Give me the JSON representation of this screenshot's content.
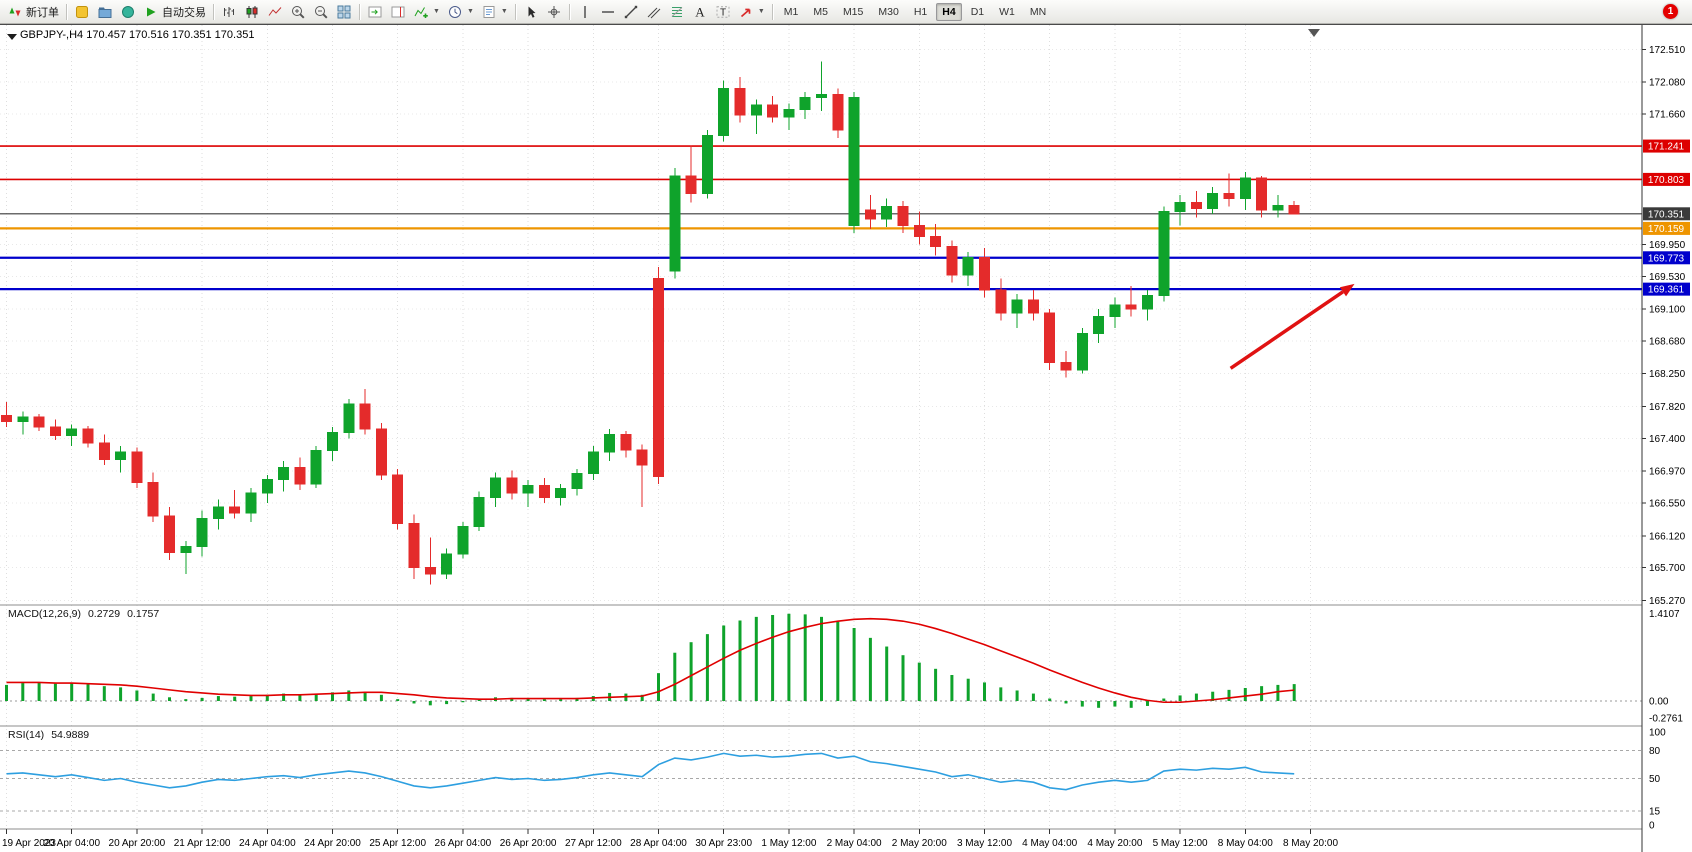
{
  "header": {
    "title": "GBPJPY-,H4 170.457 170.516 170.351 170.351"
  },
  "toolbar": {
    "items": [
      {
        "name": "new-order",
        "label": "新订单"
      },
      {
        "name": "sep"
      },
      {
        "name": "metaeditor"
      },
      {
        "name": "profiles"
      },
      {
        "name": "data-window"
      },
      {
        "name": "auto-trading",
        "label": "自动交易"
      },
      {
        "name": "sep"
      },
      {
        "name": "bars-chart"
      },
      {
        "name": "candles-chart"
      },
      {
        "name": "line-chart"
      },
      {
        "name": "zoom-in"
      },
      {
        "name": "zoom-out"
      },
      {
        "name": "tile-windows"
      },
      {
        "name": "sep"
      },
      {
        "name": "auto-scroll"
      },
      {
        "name": "chart-shift"
      },
      {
        "name": "indicators",
        "caret": true
      },
      {
        "name": "periods",
        "caret": true
      },
      {
        "name": "templates",
        "caret": true
      },
      {
        "name": "sep"
      },
      {
        "name": "cursor"
      },
      {
        "name": "crosshair"
      },
      {
        "name": "sep"
      },
      {
        "name": "vertical-line"
      },
      {
        "name": "horizontal-line"
      },
      {
        "name": "trendline"
      },
      {
        "name": "equidistant-channel"
      },
      {
        "name": "fibonacci"
      },
      {
        "name": "text"
      },
      {
        "name": "text-label"
      },
      {
        "name": "arrows",
        "caret": true
      },
      {
        "name": "sep"
      }
    ],
    "timeframes": [
      "M1",
      "M5",
      "M15",
      "M30",
      "H1",
      "H4",
      "D1",
      "W1",
      "MN"
    ],
    "active_timeframe": "H4",
    "notification": "1"
  },
  "chart_data": {
    "type": "candlestick",
    "symbol": "GBPJPY-",
    "period": "H4",
    "ohlc_current": {
      "open": "170.457",
      "high": "170.516",
      "low": "170.351",
      "close": "170.351"
    },
    "colors": {
      "bull": "#0fa32b",
      "bear": "#e42b2b"
    },
    "y_ticks": [
      "172.510",
      "172.080",
      "171.660",
      "169.950",
      "169.530",
      "169.100",
      "168.680",
      "168.250",
      "167.820",
      "167.400",
      "166.970",
      "166.550",
      "166.120",
      "165.700",
      "165.270"
    ],
    "x_labels": [
      "19 Apr 2023",
      "20 Apr 04:00",
      "20 Apr 20:00",
      "21 Apr 12:00",
      "24 Apr 04:00",
      "24 Apr 20:00",
      "25 Apr 12:00",
      "26 Apr 04:00",
      "26 Apr 20:00",
      "27 Apr 12:00",
      "28 Apr 04:00",
      "30 Apr 23:00",
      "1 May 12:00",
      "2 May 04:00",
      "2 May 20:00",
      "3 May 12:00",
      "4 May 04:00",
      "4 May 20:00",
      "5 May 12:00",
      "8 May 04:00",
      "8 May 20:00"
    ],
    "hlines": [
      {
        "price": 171.241,
        "label": "171.241",
        "color": "#dd0000",
        "width": 1.6,
        "name": "resistance-line-upper"
      },
      {
        "price": 170.803,
        "label": "170.803",
        "color": "#dd0000",
        "width": 1.6,
        "name": "resistance-line-lower"
      },
      {
        "price": 170.351,
        "label": "170.351",
        "color": "#3a3a3a",
        "width": 1.1,
        "name": "current-price-line"
      },
      {
        "price": 170.159,
        "label": "170.159",
        "color": "#ee9500",
        "width": 2.2,
        "name": "pivot-line-orange"
      },
      {
        "price": 169.773,
        "label": "169.773",
        "color": "#0000cc",
        "width": 2.2,
        "name": "support-line-upper"
      },
      {
        "price": 169.361,
        "label": "169.361",
        "color": "#0000cc",
        "width": 2.2,
        "name": "support-line-lower"
      }
    ],
    "arrow": {
      "from_bar": 75.1,
      "from_price": 168.32,
      "to_bar": 82.7,
      "to_price": 169.43,
      "color": "#e01212"
    },
    "candles": [
      [
        167.7,
        167.88,
        167.55,
        167.62
      ],
      [
        167.62,
        167.75,
        167.45,
        167.68
      ],
      [
        167.68,
        167.72,
        167.5,
        167.55
      ],
      [
        167.55,
        167.65,
        167.38,
        167.44
      ],
      [
        167.44,
        167.58,
        167.3,
        167.52
      ],
      [
        167.52,
        167.56,
        167.28,
        167.34
      ],
      [
        167.34,
        167.45,
        167.05,
        167.12
      ],
      [
        167.12,
        167.3,
        166.95,
        167.22
      ],
      [
        167.22,
        167.28,
        166.75,
        166.82
      ],
      [
        166.82,
        166.95,
        166.3,
        166.38
      ],
      [
        166.38,
        166.5,
        165.8,
        165.9
      ],
      [
        165.9,
        166.05,
        165.62,
        165.98
      ],
      [
        165.98,
        166.45,
        165.85,
        166.35
      ],
      [
        166.35,
        166.6,
        166.2,
        166.5
      ],
      [
        166.5,
        166.72,
        166.35,
        166.42
      ],
      [
        166.42,
        166.75,
        166.3,
        166.68
      ],
      [
        166.68,
        166.92,
        166.55,
        166.86
      ],
      [
        166.86,
        167.1,
        166.7,
        167.02
      ],
      [
        167.02,
        167.15,
        166.72,
        166.8
      ],
      [
        166.8,
        167.3,
        166.75,
        167.24
      ],
      [
        167.24,
        167.55,
        167.1,
        167.48
      ],
      [
        167.48,
        167.92,
        167.4,
        167.85
      ],
      [
        167.85,
        168.05,
        167.45,
        167.52
      ],
      [
        167.52,
        167.6,
        166.85,
        166.92
      ],
      [
        166.92,
        167.0,
        166.2,
        166.28
      ],
      [
        166.28,
        166.4,
        165.55,
        165.7
      ],
      [
        165.7,
        166.1,
        165.48,
        165.62
      ],
      [
        165.62,
        165.95,
        165.55,
        165.88
      ],
      [
        165.88,
        166.3,
        165.82,
        166.24
      ],
      [
        166.24,
        166.7,
        166.18,
        166.62
      ],
      [
        166.62,
        166.95,
        166.5,
        166.88
      ],
      [
        166.88,
        166.98,
        166.6,
        166.68
      ],
      [
        166.68,
        166.85,
        166.5,
        166.78
      ],
      [
        166.78,
        166.88,
        166.55,
        166.62
      ],
      [
        166.62,
        166.8,
        166.52,
        166.74
      ],
      [
        166.74,
        167.0,
        166.65,
        166.94
      ],
      [
        166.94,
        167.3,
        166.85,
        167.22
      ],
      [
        167.22,
        167.52,
        167.1,
        167.45
      ],
      [
        167.45,
        167.5,
        167.15,
        167.25
      ],
      [
        167.25,
        167.32,
        166.5,
        167.05
      ],
      [
        169.5,
        169.65,
        166.8,
        166.9
      ],
      [
        169.6,
        170.95,
        169.5,
        170.85
      ],
      [
        170.85,
        171.25,
        170.5,
        170.62
      ],
      [
        170.62,
        171.45,
        170.55,
        171.38
      ],
      [
        171.38,
        172.1,
        171.3,
        172.0
      ],
      [
        172.0,
        172.15,
        171.55,
        171.65
      ],
      [
        171.65,
        171.85,
        171.4,
        171.78
      ],
      [
        171.78,
        171.9,
        171.55,
        171.62
      ],
      [
        171.62,
        171.8,
        171.45,
        171.72
      ],
      [
        171.72,
        171.95,
        171.6,
        171.88
      ],
      [
        171.88,
        172.35,
        171.7,
        171.92
      ],
      [
        171.92,
        172.0,
        171.35,
        171.45
      ],
      [
        170.2,
        171.95,
        170.1,
        171.88
      ],
      [
        170.4,
        170.6,
        170.15,
        170.28
      ],
      [
        170.28,
        170.55,
        170.18,
        170.45
      ],
      [
        170.45,
        170.52,
        170.1,
        170.2
      ],
      [
        170.2,
        170.38,
        169.95,
        170.05
      ],
      [
        170.05,
        170.22,
        169.8,
        169.92
      ],
      [
        169.92,
        170.0,
        169.45,
        169.55
      ],
      [
        169.55,
        169.85,
        169.4,
        169.78
      ],
      [
        169.78,
        169.9,
        169.25,
        169.35
      ],
      [
        169.35,
        169.5,
        168.95,
        169.05
      ],
      [
        169.05,
        169.3,
        168.85,
        169.22
      ],
      [
        169.22,
        169.35,
        168.95,
        169.05
      ],
      [
        169.05,
        169.1,
        168.3,
        168.4
      ],
      [
        168.4,
        168.55,
        168.2,
        168.3
      ],
      [
        168.3,
        168.85,
        168.25,
        168.78
      ],
      [
        168.78,
        169.1,
        168.65,
        169.0
      ],
      [
        169.0,
        169.25,
        168.85,
        169.15
      ],
      [
        169.15,
        169.4,
        169.0,
        169.1
      ],
      [
        169.1,
        169.35,
        168.95,
        169.28
      ],
      [
        169.28,
        170.45,
        169.2,
        170.38
      ],
      [
        170.38,
        170.6,
        170.2,
        170.5
      ],
      [
        170.5,
        170.65,
        170.3,
        170.42
      ],
      [
        170.42,
        170.7,
        170.35,
        170.62
      ],
      [
        170.62,
        170.88,
        170.45,
        170.55
      ],
      [
        170.55,
        170.9,
        170.4,
        170.82
      ],
      [
        170.82,
        170.85,
        170.3,
        170.4
      ],
      [
        170.4,
        170.6,
        170.3,
        170.46
      ],
      [
        170.457,
        170.516,
        170.351,
        170.351
      ]
    ],
    "indicators": {
      "macd": {
        "name": "MACD(12,26,9)",
        "value_main": "0.2729",
        "value_signal": "0.1757",
        "scale_labels": [
          "1.4107",
          "0.00",
          "-0.2761"
        ],
        "scale_values": [
          1.4107,
          0,
          -0.2761
        ],
        "histogram_color": "#0fa32b",
        "signal_color": "#e00000",
        "histogram": [
          0.26,
          0.29,
          0.3,
          0.28,
          0.29,
          0.27,
          0.24,
          0.22,
          0.17,
          0.12,
          0.06,
          0.03,
          0.05,
          0.08,
          0.07,
          0.08,
          0.1,
          0.12,
          0.09,
          0.11,
          0.14,
          0.17,
          0.15,
          0.1,
          0.03,
          -0.04,
          -0.07,
          -0.05,
          -0.02,
          0.02,
          0.06,
          0.05,
          0.04,
          0.03,
          0.03,
          0.05,
          0.08,
          0.13,
          0.12,
          0.1,
          0.45,
          0.78,
          0.95,
          1.08,
          1.22,
          1.3,
          1.36,
          1.39,
          1.41,
          1.4,
          1.36,
          1.28,
          1.18,
          1.02,
          0.88,
          0.74,
          0.62,
          0.52,
          0.42,
          0.36,
          0.3,
          0.22,
          0.17,
          0.12,
          0.04,
          -0.04,
          -0.09,
          -0.11,
          -0.09,
          -0.11,
          -0.08,
          0.04,
          0.09,
          0.12,
          0.15,
          0.18,
          0.21,
          0.24,
          0.26,
          0.2729
        ],
        "signal": [
          0.3,
          0.3,
          0.3,
          0.29,
          0.29,
          0.28,
          0.27,
          0.26,
          0.24,
          0.21,
          0.18,
          0.15,
          0.13,
          0.11,
          0.1,
          0.09,
          0.09,
          0.1,
          0.1,
          0.11,
          0.12,
          0.13,
          0.14,
          0.14,
          0.12,
          0.1,
          0.07,
          0.05,
          0.04,
          0.03,
          0.03,
          0.04,
          0.04,
          0.04,
          0.04,
          0.04,
          0.05,
          0.06,
          0.07,
          0.08,
          0.15,
          0.27,
          0.41,
          0.55,
          0.69,
          0.82,
          0.93,
          1.03,
          1.12,
          1.19,
          1.25,
          1.29,
          1.32,
          1.33,
          1.32,
          1.29,
          1.24,
          1.17,
          1.09,
          1.0,
          0.91,
          0.81,
          0.71,
          0.61,
          0.5,
          0.4,
          0.3,
          0.21,
          0.13,
          0.06,
          0.01,
          -0.02,
          -0.02,
          0.0,
          0.02,
          0.05,
          0.08,
          0.11,
          0.15,
          0.1757
        ]
      },
      "rsi": {
        "name": "RSI(14)",
        "value": "54.9889",
        "color": "#2d9fe0",
        "levels": [
          "100",
          "80",
          "50",
          "15",
          "0"
        ],
        "level_values": [
          100,
          80,
          50,
          15,
          0
        ],
        "dashed_levels": [
          80,
          50,
          15
        ],
        "values": [
          55,
          56,
          54,
          52,
          54,
          51,
          48,
          50,
          46,
          43,
          40,
          42,
          46,
          49,
          48,
          50,
          52,
          53,
          51,
          54,
          56,
          58,
          56,
          52,
          47,
          42,
          40,
          42,
          45,
          48,
          51,
          49,
          50,
          48,
          49,
          51,
          54,
          56,
          54,
          52,
          65,
          72,
          70,
          73,
          77,
          74,
          75,
          73,
          74,
          76,
          77,
          72,
          74,
          68,
          66,
          63,
          60,
          57,
          52,
          54,
          50,
          46,
          48,
          46,
          40,
          38,
          43,
          46,
          48,
          46,
          48,
          58,
          60,
          59,
          61,
          60,
          62,
          57,
          56,
          54.9889
        ]
      }
    }
  }
}
